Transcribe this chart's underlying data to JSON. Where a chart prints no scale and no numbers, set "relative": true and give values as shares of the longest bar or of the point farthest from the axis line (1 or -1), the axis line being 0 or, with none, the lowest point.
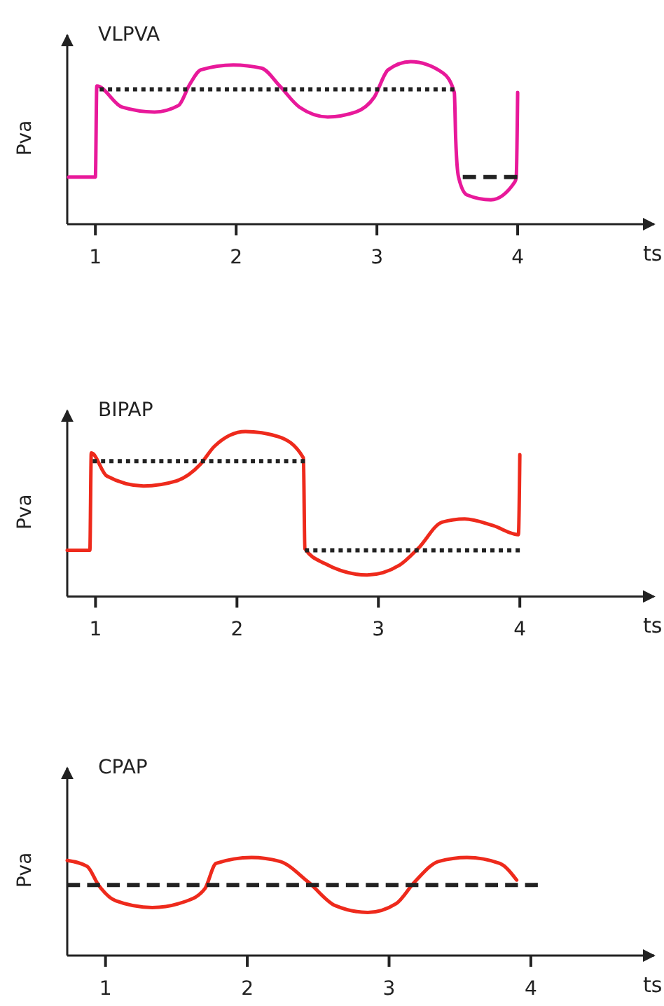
{
  "chart_data": [
    {
      "type": "line",
      "title": "VLPVA",
      "xlabel": "ts",
      "ylabel": "Pva",
      "relative": true,
      "xlim": [
        0.8,
        4.97
      ],
      "xticks": [
        1,
        2,
        3,
        4
      ],
      "marker": "none",
      "series": [
        {
          "color": "#e8199a",
          "line_style": "solid",
          "x": [
            0.81,
            1.0,
            1.01,
            1.19,
            1.42,
            1.59,
            1.67,
            1.75,
            1.98,
            2.18,
            2.31,
            2.45,
            2.65,
            2.85,
            2.98,
            3.08,
            3.24,
            3.47,
            3.55,
            3.56,
            3.58,
            3.64,
            3.81,
            3.98,
            3.99,
            4.0
          ],
          "values": [
            0.29,
            0.29,
            0.85,
            0.72,
            0.69,
            0.73,
            0.86,
            0.95,
            0.98,
            0.96,
            0.85,
            0.72,
            0.66,
            0.69,
            0.78,
            0.95,
            1.0,
            0.93,
            0.81,
            0.52,
            0.29,
            0.18,
            0.15,
            0.26,
            0.29,
            0.81
          ]
        },
        {
          "color": "#222222",
          "line_style": "dotted",
          "x": [
            1.03,
            3.55
          ],
          "values": [
            0.83,
            0.83
          ]
        },
        {
          "color": "#222222",
          "line_style": "dashed",
          "x": [
            3.61,
            4.0
          ],
          "values": [
            0.29,
            0.29
          ]
        }
      ]
    },
    {
      "type": "line",
      "title": "BIPAP",
      "xlabel": "ts",
      "ylabel": "Pva",
      "relative": true,
      "xlim": [
        0.8,
        4.95
      ],
      "xticks": [
        1,
        2,
        3,
        4
      ],
      "marker": "none",
      "series": [
        {
          "color": "#ee2a1c",
          "line_style": "solid",
          "x": [
            0.8,
            0.96,
            0.97,
            1.08,
            1.34,
            1.57,
            1.74,
            1.84,
            2.06,
            2.29,
            2.47,
            2.48,
            2.62,
            2.92,
            3.15,
            3.28,
            3.45,
            3.61,
            3.81,
            3.99,
            4.0
          ],
          "values": [
            0.28,
            0.28,
            0.87,
            0.73,
            0.67,
            0.7,
            0.8,
            0.91,
            1.0,
            0.97,
            0.84,
            0.29,
            0.2,
            0.13,
            0.19,
            0.29,
            0.45,
            0.47,
            0.43,
            0.375,
            0.86
          ]
        },
        {
          "color": "#222222",
          "line_style": "dotted",
          "x": [
            0.98,
            2.48
          ],
          "values": [
            0.82,
            0.82
          ]
        },
        {
          "color": "#222222",
          "line_style": "dotted",
          "x": [
            2.48,
            4.0
          ],
          "values": [
            0.28,
            0.28
          ]
        }
      ]
    },
    {
      "type": "line",
      "title": "CPAP",
      "xlabel": "ts",
      "ylabel": "Pva",
      "relative": true,
      "xlim": [
        0.73,
        4.87
      ],
      "xticks": [
        1,
        2,
        3,
        4
      ],
      "marker": "none",
      "series": [
        {
          "color": "#ee2a1c",
          "line_style": "solid",
          "x": [
            0.73,
            0.87,
            0.95,
            1.07,
            1.33,
            1.56,
            1.7,
            1.78,
            2.03,
            2.23,
            2.43,
            2.62,
            2.85,
            3.05,
            3.18,
            3.35,
            3.55,
            3.78,
            3.9
          ],
          "values": [
            0.97,
            0.91,
            0.72,
            0.56,
            0.49,
            0.55,
            0.68,
            0.94,
            1.0,
            0.96,
            0.75,
            0.51,
            0.44,
            0.53,
            0.75,
            0.96,
            1.0,
            0.94,
            0.77
          ]
        },
        {
          "color": "#222222",
          "line_style": "dashed",
          "x": [
            0.73,
            4.05
          ],
          "values": [
            0.72,
            0.72
          ]
        }
      ]
    }
  ]
}
